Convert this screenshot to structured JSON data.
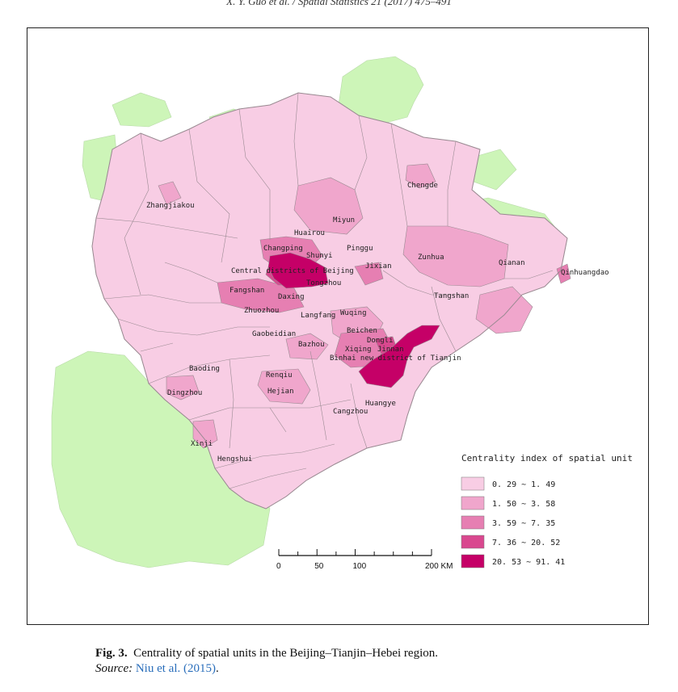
{
  "running_head": "X. Y. Guo et al. / Spatial Statistics 21 (2017) 475–491",
  "caption": {
    "fig_num": "Fig. 3.",
    "text": "Centrality of spatial units in the Beijing–Tianjin–Hebei region.",
    "source_label": "Source:",
    "source_ref": "Niu et al.",
    "source_year": "(2015)",
    "source_end": "."
  },
  "colors": {
    "outside": "#cdf5b8",
    "class1": "#f8cde4",
    "class2": "#f0a6cc",
    "class3": "#e67fb2",
    "class4": "#d9488f",
    "class5": "#c50067",
    "border": "#9a8a92"
  },
  "legend": {
    "title": "Centrality index of spatial unit",
    "classes": [
      {
        "label": "0. 29 ~ 1. 49",
        "color": "#f8cde4"
      },
      {
        "label": "1. 50 ~ 3. 58",
        "color": "#f0a6cc"
      },
      {
        "label": "3. 59 ~ 7. 35",
        "color": "#e67fb2"
      },
      {
        "label": "7. 36 ~ 20. 52",
        "color": "#d9488f"
      },
      {
        "label": "20. 53 ~ 91. 41",
        "color": "#c50067"
      }
    ]
  },
  "scale_bar": {
    "labels": [
      "0",
      "50",
      "100",
      "200 KM"
    ],
    "km": [
      0,
      50,
      100,
      200
    ]
  },
  "labels": {
    "zhangjiakou": "Zhangjiakou",
    "chengde": "Chengde",
    "huairou": "Huairou",
    "miyun": "Miyun",
    "changping": "Changping",
    "shunyi": "Shunyi",
    "pinggu": "Pinggu",
    "central": "Central districts of Beijing",
    "jixian": "Jixian",
    "zunhua": "Zunhua",
    "qianan": "Qianan",
    "qinhuangdao": "Qinhuangdao",
    "tongzhou": "Tongzhou",
    "fangshan": "Fangshan",
    "daxing": "Daxing",
    "tangshan": "Tangshan",
    "langfang": "Langfang",
    "wuqing": "Wuqing",
    "zhuozhou": "Zhuozhou",
    "gaobeidian": "Gaobeidian",
    "beichen": "Beichen",
    "bazhou": "Bazhou",
    "dongli": "Dongli",
    "xiqing": "Xiqing",
    "jinnan": "Jinnan",
    "binhai": "Binhai new district of Tianjin",
    "baoding": "Baoding",
    "renqiu": "Renqiu",
    "dingzhou": "Dingzhou",
    "hejian": "Hejian",
    "huanghua": "Huangye",
    "cangzhou": "Cangzhou",
    "xinji": "Xinji",
    "hengshui": "Hengshui"
  }
}
